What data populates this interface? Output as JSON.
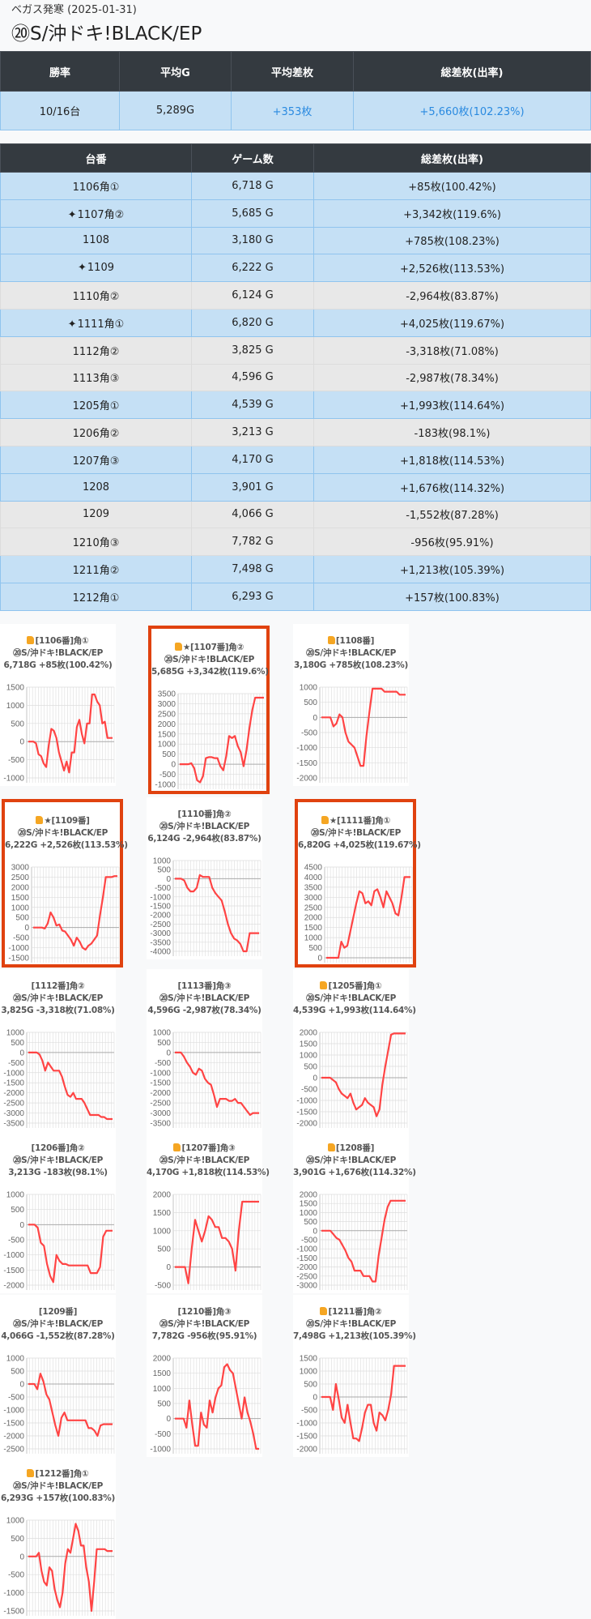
{
  "header": {
    "subtitle": "ベガス発寒 (2025-01-31)",
    "title": "⑳S/沖ドキ!BLACK/EP"
  },
  "summary": {
    "headers": [
      "勝率",
      "平均G",
      "平均差枚",
      "総差枚(出率)"
    ],
    "values": [
      "10/16台",
      "5,289G",
      "+353枚",
      "+5,660枚(102.23%)"
    ]
  },
  "colors": {
    "header_bg": "#343a40",
    "positive_row": "#c5e0f5",
    "negative_row": "#e8e8e8",
    "accent_blue": "#2a8ae0",
    "highlight_border": "#e0420f",
    "line": "#ff4444"
  },
  "machines_table": {
    "headers": [
      "台番",
      "ゲーム数",
      "総差枚(出率)"
    ],
    "rows": [
      {
        "id": "1106角①",
        "sparkle": false,
        "games": "6,718 G",
        "diff": "+85枚(100.42%)"
      },
      {
        "id": "1107角②",
        "sparkle": true,
        "games": "5,685 G",
        "diff": "+3,342枚(119.6%)"
      },
      {
        "id": "1108",
        "sparkle": false,
        "games": "3,180 G",
        "diff": "+785枚(108.23%)"
      },
      {
        "id": "1109",
        "sparkle": true,
        "games": "6,222 G",
        "diff": "+2,526枚(113.53%)"
      },
      {
        "id": "1110角②",
        "sparkle": false,
        "games": "6,124 G",
        "diff": "-2,964枚(83.87%)"
      },
      {
        "id": "1111角①",
        "sparkle": true,
        "games": "6,820 G",
        "diff": "+4,025枚(119.67%)"
      },
      {
        "id": "1112角②",
        "sparkle": false,
        "games": "3,825 G",
        "diff": "-3,318枚(71.08%)"
      },
      {
        "id": "1113角③",
        "sparkle": false,
        "games": "4,596 G",
        "diff": "-2,987枚(78.34%)"
      },
      {
        "id": "1205角①",
        "sparkle": false,
        "games": "4,539 G",
        "diff": "+1,993枚(114.64%)"
      },
      {
        "id": "1206角②",
        "sparkle": false,
        "games": "3,213 G",
        "diff": "-183枚(98.1%)"
      },
      {
        "id": "1207角③",
        "sparkle": false,
        "games": "4,170 G",
        "diff": "+1,818枚(114.53%)"
      },
      {
        "id": "1208",
        "sparkle": false,
        "games": "3,901 G",
        "diff": "+1,676枚(114.32%)"
      },
      {
        "id": "1209",
        "sparkle": false,
        "games": "4,066 G",
        "diff": "-1,552枚(87.28%)"
      },
      {
        "id": "1210角③",
        "sparkle": false,
        "games": "7,782 G",
        "diff": "-956枚(95.91%)"
      },
      {
        "id": "1211角②",
        "sparkle": false,
        "games": "7,498 G",
        "diff": "+1,213枚(105.39%)"
      },
      {
        "id": "1212角①",
        "sparkle": false,
        "games": "6,293 G",
        "diff": "+157枚(100.83%)"
      }
    ]
  },
  "chart_data": [
    {
      "type": "line",
      "thumb": true,
      "star": false,
      "highlight": false,
      "label": "[1106番]角①",
      "machine": "⑳S/沖ドキ!BLACK/EP",
      "stats": "6,718G +85枚(100.42%)",
      "ylim": [
        -1000,
        1500
      ],
      "values": [
        0,
        0,
        0,
        -50,
        -350,
        -400,
        -600,
        -700,
        -100,
        350,
        300,
        100,
        -300,
        -550,
        -800,
        -550,
        -850,
        -300,
        -300,
        400,
        600,
        200,
        -50,
        500,
        500,
        1300,
        1300,
        1100,
        1000,
        500,
        550,
        100,
        100,
        100
      ]
    },
    {
      "type": "line",
      "thumb": true,
      "star": true,
      "highlight": true,
      "label": "[1107番]角②",
      "machine": "⑳S/沖ドキ!BLACK/EP",
      "stats": "5,685G +3,342枚(119.6%)",
      "ylim": [
        -1000,
        3500
      ],
      "values": [
        0,
        0,
        0,
        0,
        50,
        -200,
        -800,
        -900,
        -600,
        300,
        350,
        350,
        300,
        300,
        -100,
        -300,
        400,
        1400,
        1300,
        1400,
        900,
        600,
        -100,
        700,
        1800,
        2700,
        3300,
        3300,
        3300,
        3300
      ]
    },
    {
      "type": "line",
      "thumb": true,
      "star": false,
      "highlight": false,
      "label": "[1108番]",
      "machine": "⑳S/沖ドキ!BLACK/EP",
      "stats": "3,180G +785枚(108.23%)",
      "ylim": [
        -2000,
        1000
      ],
      "values": [
        0,
        0,
        0,
        0,
        -300,
        -200,
        100,
        0,
        -500,
        -800,
        -900,
        -1000,
        -1300,
        -1600,
        -1600,
        -600,
        200,
        950,
        950,
        950,
        950,
        850,
        850,
        850,
        850,
        850,
        750,
        750,
        750
      ]
    },
    {
      "type": "line",
      "thumb": true,
      "star": true,
      "highlight": true,
      "label": "[1109番]",
      "machine": "⑳S/沖ドキ!BLACK/EP",
      "stats": "6,222G +2,526枚(113.53%)",
      "ylim": [
        -1500,
        3000
      ],
      "values": [
        0,
        0,
        0,
        0,
        -50,
        200,
        750,
        500,
        100,
        150,
        -150,
        -200,
        -400,
        -600,
        -900,
        -500,
        -700,
        -1000,
        -1100,
        -900,
        -800,
        -600,
        -400,
        600,
        1500,
        2500,
        2500,
        2500,
        2550,
        2550
      ]
    },
    {
      "type": "line",
      "thumb": false,
      "star": false,
      "highlight": false,
      "label": "[1110番]角②",
      "machine": "⑳S/沖ドキ!BLACK/EP",
      "stats": "6,124G -2,964枚(83.87%)",
      "ylim": [
        -4000,
        1000
      ],
      "values": [
        0,
        0,
        0,
        -100,
        -500,
        -700,
        -700,
        -500,
        200,
        100,
        100,
        100,
        -500,
        -800,
        -1000,
        -1200,
        -1800,
        -2500,
        -3000,
        -3300,
        -3400,
        -3600,
        -4000,
        -4000,
        -3000,
        -3000,
        -3000,
        -3000
      ]
    },
    {
      "type": "line",
      "thumb": true,
      "star": true,
      "highlight": true,
      "label": "[1111番]角①",
      "machine": "⑳S/沖ドキ!BLACK/EP",
      "stats": "6,820G +4,025枚(119.67%)",
      "ylim": [
        0,
        4500
      ],
      "values": [
        0,
        0,
        0,
        0,
        0,
        800,
        500,
        600,
        1300,
        2000,
        2700,
        3300,
        3200,
        2700,
        2800,
        2600,
        3300,
        3400,
        3000,
        2500,
        3300,
        3000,
        2700,
        2200,
        2100,
        3000,
        4000,
        4000,
        4000
      ]
    },
    {
      "type": "line",
      "thumb": false,
      "star": false,
      "highlight": false,
      "label": "[1112番]角②",
      "machine": "⑳S/沖ドキ!BLACK/EP",
      "stats": "3,825G -3,318枚(71.08%)",
      "ylim": [
        -3500,
        1000
      ],
      "values": [
        0,
        0,
        0,
        0,
        -100,
        -400,
        -900,
        -500,
        -700,
        -900,
        -900,
        -900,
        -1200,
        -1700,
        -2100,
        -2200,
        -2000,
        -2300,
        -2300,
        -2300,
        -2500,
        -2800,
        -3100,
        -3100,
        -3100,
        -3100,
        -3200,
        -3200,
        -3300,
        -3300,
        -3300
      ]
    },
    {
      "type": "line",
      "thumb": false,
      "star": false,
      "highlight": false,
      "label": "[1113番]角③",
      "machine": "⑳S/沖ドキ!BLACK/EP",
      "stats": "4,596G -2,987枚(78.34%)",
      "ylim": [
        -3500,
        1000
      ],
      "values": [
        0,
        0,
        0,
        -200,
        -500,
        -700,
        -1000,
        -1100,
        -800,
        -900,
        -1300,
        -1500,
        -1600,
        -2100,
        -2700,
        -2300,
        -2300,
        -2300,
        -2400,
        -2400,
        -2300,
        -2500,
        -2500,
        -2700,
        -2900,
        -3100,
        -3000,
        -3000,
        -3000
      ]
    },
    {
      "type": "line",
      "thumb": true,
      "star": false,
      "highlight": false,
      "label": "[1205番]角①",
      "machine": "⑳S/沖ドキ!BLACK/EP",
      "stats": "4,539G +1,993枚(114.64%)",
      "ylim": [
        -2000,
        2000
      ],
      "values": [
        0,
        0,
        0,
        0,
        -100,
        -200,
        -500,
        -700,
        -800,
        -900,
        -700,
        -1100,
        -1400,
        -1300,
        -1200,
        -900,
        -1100,
        -1200,
        -1300,
        -1700,
        -1400,
        -300,
        500,
        1200,
        1900,
        1950,
        1950,
        1950,
        1950,
        1950
      ]
    },
    {
      "type": "line",
      "thumb": false,
      "star": false,
      "highlight": false,
      "label": "[1206番]角②",
      "machine": "⑳S/沖ドキ!BLACK/EP",
      "stats": "3,213G -183枚(98.1%)",
      "ylim": [
        -2000,
        1000
      ],
      "values": [
        0,
        0,
        0,
        -100,
        -600,
        -700,
        -1300,
        -1700,
        -1900,
        -1000,
        -1200,
        -1300,
        -1300,
        -1350,
        -1350,
        -1350,
        -1350,
        -1350,
        -1350,
        -1350,
        -1600,
        -1600,
        -1600,
        -1400,
        -400,
        -200,
        -200,
        -200
      ]
    },
    {
      "type": "line",
      "thumb": true,
      "star": false,
      "highlight": false,
      "label": "[1207番]角③",
      "machine": "⑳S/沖ドキ!BLACK/EP",
      "stats": "4,170G +1,818枚(114.53%)",
      "ylim": [
        -500,
        2000
      ],
      "values": [
        0,
        0,
        0,
        0,
        -450,
        500,
        1300,
        1000,
        700,
        1000,
        1400,
        1300,
        1100,
        1100,
        800,
        800,
        700,
        500,
        -100,
        1000,
        1800,
        1800,
        1800,
        1800,
        1800,
        1800
      ]
    },
    {
      "type": "line",
      "thumb": true,
      "star": false,
      "highlight": false,
      "label": "[1208番]",
      "machine": "⑳S/沖ドキ!BLACK/EP",
      "stats": "3,901G +1,676枚(114.32%)",
      "ylim": [
        -3000,
        2000
      ],
      "values": [
        0,
        0,
        0,
        0,
        -200,
        -400,
        -500,
        -800,
        -1100,
        -1500,
        -1700,
        -2200,
        -2200,
        -2200,
        -2500,
        -2500,
        -2500,
        -2800,
        -2800,
        -1400,
        -400,
        600,
        1300,
        1650,
        1650,
        1650,
        1650,
        1650,
        1650
      ]
    },
    {
      "type": "line",
      "thumb": false,
      "star": false,
      "highlight": false,
      "label": "[1209番]",
      "machine": "⑳S/沖ドキ!BLACK/EP",
      "stats": "4,066G -1,552枚(87.28%)",
      "ylim": [
        -2500,
        1000
      ],
      "values": [
        0,
        0,
        0,
        -200,
        400,
        100,
        -400,
        -600,
        -1100,
        -1600,
        -2000,
        -1300,
        -1100,
        -1400,
        -1400,
        -1400,
        -1400,
        -1400,
        -1400,
        -1400,
        -1700,
        -1700,
        -1800,
        -2000,
        -1600,
        -1550,
        -1550,
        -1550,
        -1550
      ]
    },
    {
      "type": "line",
      "thumb": false,
      "star": false,
      "highlight": false,
      "label": "[1210番]角③",
      "machine": "⑳S/沖ドキ!BLACK/EP",
      "stats": "7,782G -956枚(95.91%)",
      "ylim": [
        -1000,
        2000
      ],
      "values": [
        0,
        0,
        0,
        0,
        -300,
        600,
        -200,
        -900,
        -900,
        200,
        -200,
        -300,
        600,
        200,
        700,
        1000,
        1100,
        1700,
        1800,
        1600,
        1500,
        1000,
        500,
        0,
        700,
        200,
        -100,
        -500,
        -1000,
        -1000
      ]
    },
    {
      "type": "line",
      "thumb": true,
      "star": false,
      "highlight": false,
      "label": "[1211番]角②",
      "machine": "⑳S/沖ドキ!BLACK/EP",
      "stats": "7,498G +1,213枚(105.39%)",
      "ylim": [
        -2000,
        1500
      ],
      "values": [
        0,
        0,
        0,
        0,
        -500,
        500,
        -100,
        -800,
        -1000,
        -300,
        -1000,
        -1600,
        -1600,
        -1700,
        -1200,
        -600,
        -300,
        -300,
        -1000,
        -1300,
        -600,
        -700,
        -900,
        -500,
        100,
        1200,
        1200,
        1200,
        1200,
        1200
      ]
    },
    {
      "type": "line",
      "thumb": true,
      "star": false,
      "highlight": false,
      "label": "[1212番]角①",
      "machine": "⑳S/沖ドキ!BLACK/EP",
      "stats": "6,293G +157枚(100.83%)",
      "ylim": [
        -1500,
        1000
      ],
      "values": [
        0,
        0,
        0,
        0,
        100,
        -400,
        -700,
        -800,
        -300,
        -400,
        -900,
        -1200,
        -1400,
        -1000,
        -200,
        200,
        100,
        500,
        900,
        700,
        300,
        300,
        -300,
        -700,
        -1500,
        -700,
        200,
        200,
        200,
        200,
        150,
        150,
        150
      ]
    }
  ]
}
